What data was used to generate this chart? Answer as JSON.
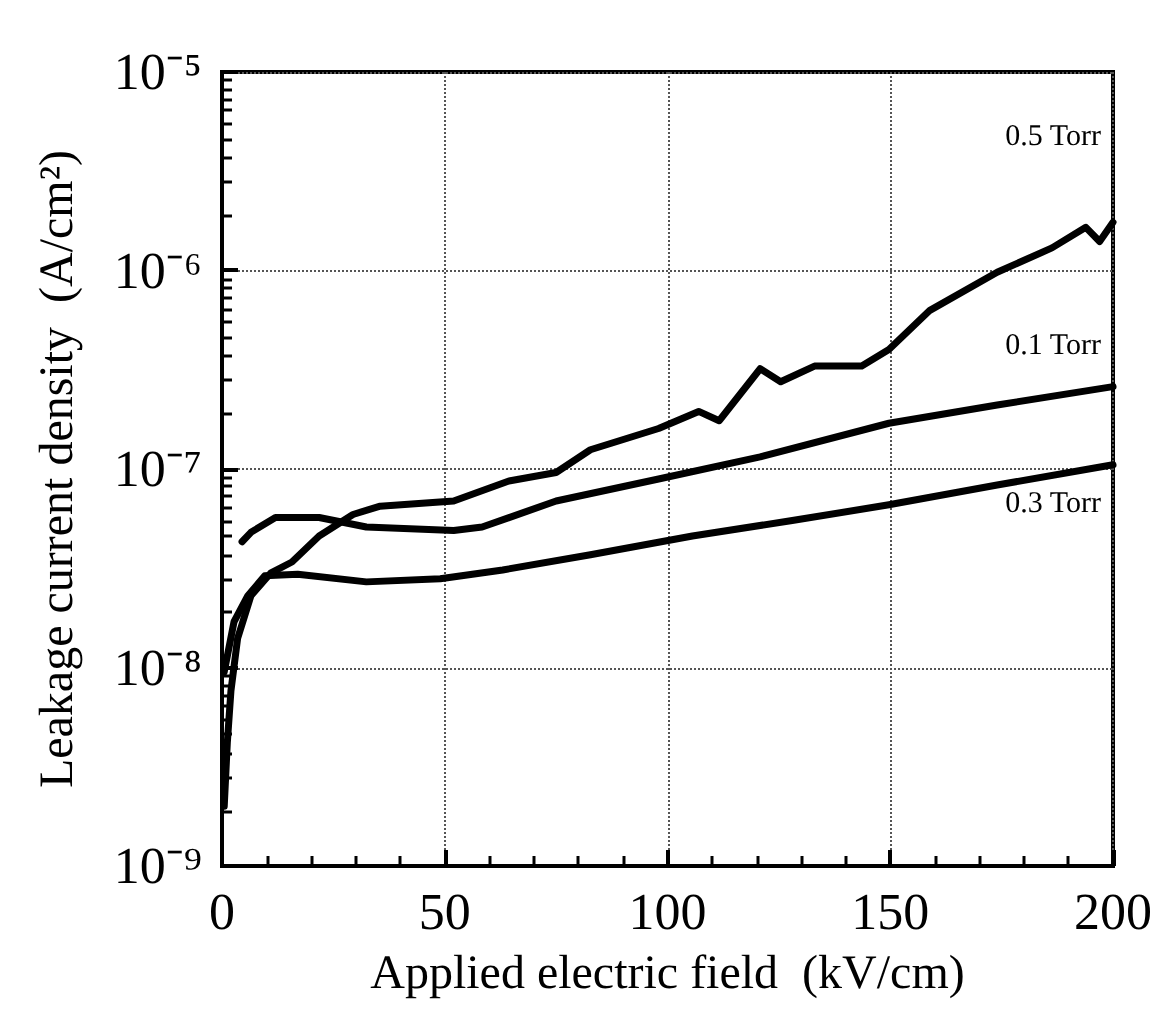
{
  "chart_data": {
    "type": "line",
    "xlabel": "Applied electric field  (kV/cm)",
    "ylabel": "Leakage current density  (A/cm²)",
    "log": "y",
    "grid": true,
    "legend": false,
    "marker": "none",
    "line_style": "solid",
    "xlim": [
      0,
      200
    ],
    "xticks": [
      0,
      50,
      100,
      150,
      200
    ],
    "ylim": [
      1e-09,
      1e-05
    ],
    "yticks": [
      {
        "value": 1e-09,
        "label": "10⁻⁹"
      },
      {
        "value": 1e-08,
        "label": "10⁻⁸"
      },
      {
        "value": 1e-07,
        "label": "10⁻⁷"
      },
      {
        "value": 1e-06,
        "label": "10⁻⁶"
      },
      {
        "value": 1e-05,
        "label": "10⁻⁵"
      }
    ],
    "series": [
      {
        "name": "0.5 Torr",
        "color": "#000000",
        "x": [
          0.5,
          1.2,
          2,
          3.5,
          6.5,
          11,
          15.7,
          21.8,
          29.4,
          35.5,
          52,
          64.4,
          75,
          82.7,
          98,
          107,
          111.6,
          120.8,
          125.4,
          133,
          143.6,
          149.7,
          158.9,
          174,
          186.3,
          193.9,
          197,
          200
        ],
        "values": [
          2e-09,
          4.2e-09,
          7.6e-09,
          1.4e-08,
          2.3e-08,
          3e-08,
          3.4e-08,
          4.6e-08,
          5.9e-08,
          6.5e-08,
          6.9e-08,
          8.7e-08,
          9.6e-08,
          1.25e-07,
          1.6e-07,
          1.95e-07,
          1.75e-07,
          3.2e-07,
          2.75e-07,
          3.3e-07,
          3.3e-07,
          4e-07,
          6.3e-07,
          9.8e-07,
          1.3e-06,
          1.65e-06,
          1.4e-06,
          1.75e-06
        ]
      },
      {
        "name": "0.1 Torr",
        "color": "#000000",
        "x": [
          4.5,
          6.5,
          12,
          21.8,
          32.4,
          52,
          58.4,
          75,
          98,
          120.8,
          149.7,
          174,
          200
        ],
        "values": [
          4.3e-08,
          4.8e-08,
          5.7e-08,
          5.7e-08,
          5.1e-08,
          4.9e-08,
          5.1e-08,
          6.9e-08,
          8.9e-08,
          1.15e-07,
          1.7e-07,
          2.1e-07,
          2.6e-07
        ]
      },
      {
        "name": "0.3 Torr",
        "color": "#000000",
        "x": [
          0.5,
          2.7,
          5.8,
          9.6,
          17,
          32.4,
          49,
          63,
          82.7,
          105.6,
          128,
          149.7,
          174,
          200
        ],
        "values": [
          9.5e-09,
          1.7e-08,
          2.3e-08,
          2.9e-08,
          2.95e-08,
          2.7e-08,
          2.8e-08,
          3.1e-08,
          3.7e-08,
          4.6e-08,
          5.5e-08,
          6.6e-08,
          8.3e-08,
          1.05e-07
        ]
      }
    ]
  }
}
